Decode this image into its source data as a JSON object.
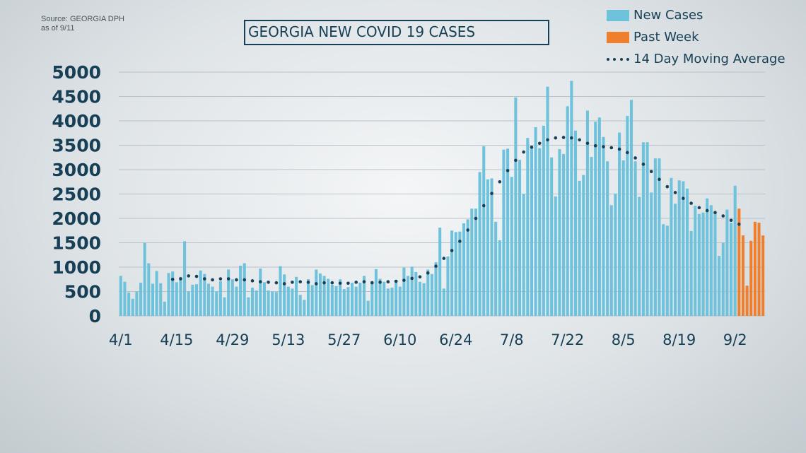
{
  "source": {
    "line1": "Source: GEORGIA DPH",
    "line2": "as of 9/11"
  },
  "title": "GEORGIA NEW COVID 19 CASES",
  "legend": {
    "new_cases": "New Cases",
    "past_week": "Past Week",
    "moving_avg": "14 Day Moving Average"
  },
  "colors": {
    "new_cases": "#6ec2dc",
    "past_week": "#ef7f2d",
    "moving_avg": "#173f55",
    "title": "#173f55"
  },
  "chart_data": {
    "type": "bar",
    "title": "GEORGIA NEW COVID 19 CASES",
    "xlabel": "",
    "ylabel": "",
    "ylim": [
      0,
      5000
    ],
    "yticks": [
      0,
      500,
      1000,
      1500,
      2000,
      2500,
      3000,
      3500,
      4000,
      4500,
      5000
    ],
    "x_tick_labels": [
      "4/1",
      "4/15",
      "4/29",
      "5/13",
      "5/27",
      "6/10",
      "6/24",
      "7/8",
      "7/22",
      "8/5",
      "8/19",
      "9/2"
    ],
    "grid": true,
    "legend_position": "top-right",
    "start_date": "4/1",
    "series": [
      {
        "name": "New Cases",
        "color": "#6ec2dc",
        "values": [
          820,
          700,
          480,
          350,
          500,
          680,
          1500,
          1080,
          660,
          920,
          670,
          290,
          880,
          910,
          690,
          800,
          1530,
          500,
          640,
          650,
          930,
          860,
          660,
          600,
          500,
          710,
          380,
          950,
          750,
          600,
          1030,
          1080,
          380,
          580,
          520,
          970,
          690,
          520,
          500,
          490,
          1020,
          850,
          600,
          560,
          800,
          430,
          330,
          750,
          630,
          950,
          870,
          820,
          760,
          640,
          610,
          750,
          550,
          590,
          680,
          600,
          680,
          820,
          310,
          710,
          960,
          760,
          700,
          560,
          580,
          740,
          600,
          990,
          820,
          1010,
          900,
          700,
          670,
          950,
          860,
          1100,
          1810,
          560,
          1220,
          1750,
          1720,
          1730,
          1900,
          1980,
          2200,
          2200,
          2950,
          3480,
          2800,
          2820,
          1930,
          1550,
          3410,
          3430,
          2850,
          4480,
          3200,
          2500,
          3650,
          3450,
          3870,
          3440,
          3900,
          4700,
          3250,
          2450,
          3420,
          3320,
          4300,
          4820,
          3800,
          2770,
          2890,
          4210,
          3260,
          3980,
          4070,
          3670,
          3170,
          2270,
          2510,
          3760,
          3190,
          4100,
          4430,
          3170,
          2440,
          3560,
          3560,
          2530,
          3230,
          3230,
          1880,
          1850,
          2830,
          2300,
          2780,
          2760,
          2610,
          1740,
          2260,
          2090,
          2120,
          2410,
          2270,
          2110,
          1230,
          1500,
          2180,
          1910,
          2670
        ]
      },
      {
        "name": "Past Week",
        "color": "#ef7f2d",
        "values": [
          2200,
          1650,
          620,
          1540,
          1930,
          1910,
          1650
        ]
      },
      {
        "name": "14 Day Moving Average",
        "color": "#173f55",
        "style": "dotted",
        "start_index": 13,
        "values": [
          750,
          740,
          760,
          800,
          820,
          830,
          810,
          780,
          760,
          760,
          740,
          740,
          760,
          760,
          760,
          740,
          740,
          740,
          740,
          730,
          720,
          710,
          700,
          700,
          690,
          690,
          680,
          670,
          660,
          660,
          690,
          690,
          700,
          690,
          690,
          660,
          660,
          670,
          680,
          680,
          680,
          680,
          670,
          680,
          670,
          680,
          690,
          700,
          700,
          680,
          680,
          690,
          690,
          690,
          700,
          700,
          710,
          720,
          730,
          750,
          770,
          780,
          800,
          830,
          880,
          950,
          1020,
          1100,
          1180,
          1260,
          1340,
          1430,
          1530,
          1640,
          1760,
          1880,
          2000,
          2130,
          2260,
          2390,
          2510,
          2630,
          2750,
          2870,
          2980,
          3090,
          3190,
          3280,
          3360,
          3410,
          3460,
          3500,
          3540,
          3580,
          3610,
          3640,
          3650,
          3650,
          3660,
          3660,
          3650,
          3630,
          3610,
          3580,
          3540,
          3510,
          3490,
          3480,
          3470,
          3460,
          3450,
          3440,
          3420,
          3390,
          3350,
          3300,
          3240,
          3180,
          3110,
          3040,
          2960,
          2880,
          2800,
          2720,
          2650,
          2590,
          2530,
          2470,
          2410,
          2360,
          2310,
          2260,
          2220,
          2190,
          2160,
          2140,
          2120,
          2090,
          2050,
          2000,
          1960,
          1920,
          1880,
          1870
        ]
      }
    ]
  }
}
